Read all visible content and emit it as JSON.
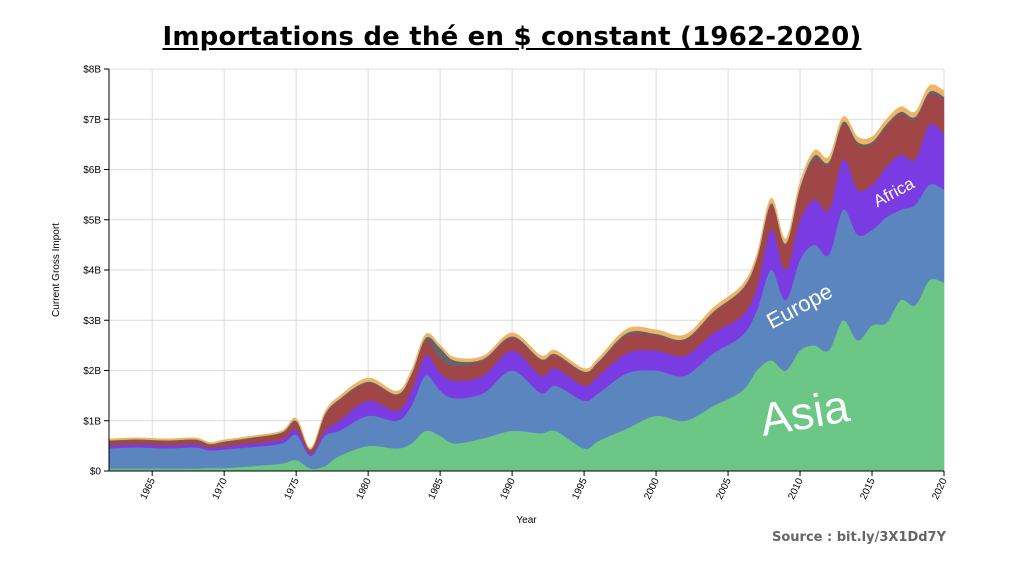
{
  "title": "Importations de thé en $ constant (1962-2020)",
  "source": "Source : bit.ly/3X1Dd7Y",
  "chart_data": {
    "type": "area",
    "stacked": true,
    "xlabel": "Year",
    "ylabel": "Current Gross Import",
    "xlim": [
      1962,
      2020
    ],
    "ylim": [
      0,
      8000000000
    ],
    "grid": true,
    "x_ticks": [
      1965,
      1970,
      1975,
      1980,
      1985,
      1990,
      1995,
      2000,
      2005,
      2010,
      2015,
      2020
    ],
    "y_ticks": [
      {
        "value": 0,
        "label": "$0"
      },
      {
        "value": 1000000000,
        "label": "$1B"
      },
      {
        "value": 2000000000,
        "label": "$2B"
      },
      {
        "value": 3000000000,
        "label": "$3B"
      },
      {
        "value": 4000000000,
        "label": "$4B"
      },
      {
        "value": 5000000000,
        "label": "$5B"
      },
      {
        "value": 6000000000,
        "label": "$6B"
      },
      {
        "value": 7000000000,
        "label": "$7B"
      },
      {
        "value": 8000000000,
        "label": "$8B"
      }
    ],
    "x": [
      1962,
      1964,
      1966,
      1968,
      1969,
      1970,
      1972,
      1974,
      1975,
      1976,
      1977,
      1978,
      1980,
      1982,
      1983,
      1984,
      1985,
      1986,
      1988,
      1990,
      1992,
      1993,
      1995,
      1996,
      1998,
      2000,
      2002,
      2004,
      2006,
      2007,
      2008,
      2009,
      2010,
      2011,
      2012,
      2013,
      2014,
      2015,
      2016,
      2017,
      2018,
      2019,
      2020
    ],
    "series": [
      {
        "name": "Asia",
        "color": "#6cc686",
        "values": [
          0.05,
          0.05,
          0.05,
          0.05,
          0.06,
          0.06,
          0.1,
          0.15,
          0.22,
          0.05,
          0.1,
          0.3,
          0.5,
          0.45,
          0.55,
          0.8,
          0.7,
          0.55,
          0.65,
          0.8,
          0.75,
          0.8,
          0.45,
          0.6,
          0.85,
          1.1,
          1.0,
          1.3,
          1.6,
          2.0,
          2.2,
          2.0,
          2.4,
          2.5,
          2.4,
          3.0,
          2.6,
          2.9,
          2.95,
          3.4,
          3.3,
          3.8,
          3.75
        ]
      },
      {
        "name": "Europe",
        "color": "#5b85bf",
        "values": [
          0.4,
          0.42,
          0.4,
          0.42,
          0.35,
          0.37,
          0.38,
          0.4,
          0.5,
          0.25,
          0.6,
          0.5,
          0.6,
          0.55,
          0.75,
          1.1,
          0.9,
          0.9,
          0.9,
          1.2,
          0.8,
          0.9,
          0.95,
          0.95,
          1.1,
          0.9,
          0.9,
          1.05,
          1.1,
          1.2,
          1.8,
          1.4,
          1.8,
          2.0,
          1.9,
          2.2,
          2.1,
          1.9,
          2.1,
          1.8,
          2.0,
          1.9,
          1.85
        ]
      },
      {
        "name": "Africa",
        "color": "#7b3be3",
        "values": [
          0.06,
          0.06,
          0.06,
          0.06,
          0.05,
          0.06,
          0.07,
          0.08,
          0.1,
          0.05,
          0.1,
          0.2,
          0.3,
          0.2,
          0.3,
          0.4,
          0.35,
          0.35,
          0.35,
          0.4,
          0.35,
          0.35,
          0.3,
          0.35,
          0.4,
          0.4,
          0.4,
          0.4,
          0.4,
          0.45,
          0.8,
          0.6,
          0.8,
          0.9,
          0.9,
          1.0,
          0.9,
          0.9,
          1.0,
          1.1,
          0.9,
          1.2,
          1.1
        ]
      },
      {
        "name": "",
        "color": "#a04646",
        "values": [
          0.08,
          0.08,
          0.08,
          0.08,
          0.06,
          0.08,
          0.1,
          0.12,
          0.15,
          0.06,
          0.3,
          0.4,
          0.35,
          0.3,
          0.3,
          0.3,
          0.3,
          0.3,
          0.3,
          0.25,
          0.3,
          0.25,
          0.25,
          0.25,
          0.35,
          0.3,
          0.3,
          0.4,
          0.5,
          0.55,
          0.5,
          0.5,
          0.6,
          0.8,
          0.9,
          0.7,
          0.9,
          0.8,
          0.8,
          0.8,
          0.8,
          0.6,
          0.7
        ]
      },
      {
        "name": "",
        "color": "#5e6472",
        "values": [
          0.02,
          0.02,
          0.02,
          0.02,
          0.02,
          0.02,
          0.02,
          0.02,
          0.03,
          0.02,
          0.03,
          0.03,
          0.03,
          0.03,
          0.03,
          0.05,
          0.2,
          0.1,
          0.03,
          0.03,
          0.03,
          0.03,
          0.03,
          0.03,
          0.05,
          0.03,
          0.03,
          0.03,
          0.03,
          0.03,
          0.03,
          0.03,
          0.05,
          0.08,
          0.05,
          0.05,
          0.05,
          0.05,
          0.05,
          0.05,
          0.05,
          0.05,
          0.05
        ]
      },
      {
        "name": "",
        "color": "#f0b462",
        "values": [
          0.03,
          0.03,
          0.03,
          0.03,
          0.03,
          0.03,
          0.03,
          0.03,
          0.05,
          0.03,
          0.05,
          0.06,
          0.07,
          0.06,
          0.07,
          0.07,
          0.06,
          0.06,
          0.06,
          0.07,
          0.07,
          0.07,
          0.06,
          0.07,
          0.08,
          0.08,
          0.08,
          0.08,
          0.08,
          0.08,
          0.1,
          0.09,
          0.1,
          0.1,
          0.1,
          0.1,
          0.1,
          0.1,
          0.1,
          0.1,
          0.1,
          0.12,
          0.12
        ]
      }
    ],
    "annotations": [
      {
        "text": "Asia",
        "series": "Asia"
      },
      {
        "text": "Europe",
        "series": "Europe"
      },
      {
        "text": "Africa",
        "series": "Africa"
      }
    ]
  }
}
